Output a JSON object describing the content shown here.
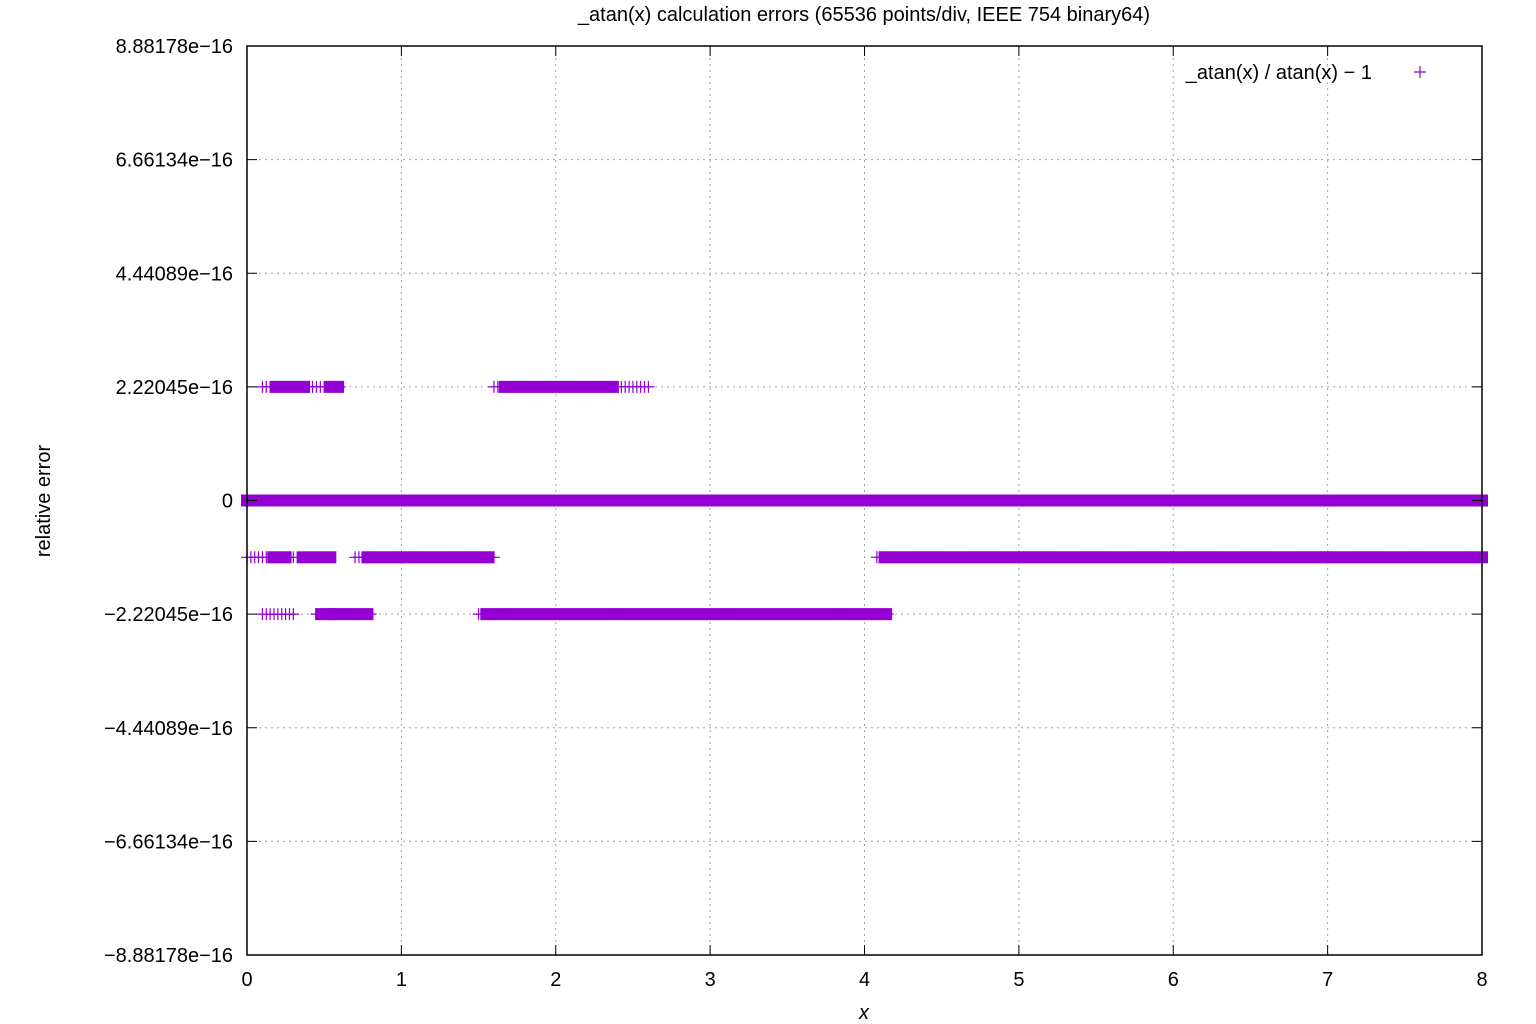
{
  "chart_data": {
    "type": "scatter",
    "title": "_atan(x) calculation errors (65536 points/div, IEEE 754 binary64)",
    "xlabel": "x",
    "ylabel": "relative error",
    "xlim": [
      0,
      8
    ],
    "ylim": [
      -8.88178e-16,
      8.88178e-16
    ],
    "x_ticks": [
      "0",
      "1",
      "2",
      "3",
      "4",
      "5",
      "6",
      "7",
      "8"
    ],
    "y_ticks": [
      {
        "value": 8.88178e-16,
        "label": "8.88178e−16"
      },
      {
        "value": 6.66134e-16,
        "label": "6.66134e−16"
      },
      {
        "value": 4.44089e-16,
        "label": "4.44089e−16"
      },
      {
        "value": 2.22045e-16,
        "label": "2.22045e−16"
      },
      {
        "value": 0,
        "label": "0"
      },
      {
        "value": -2.22045e-16,
        "label": "−2.22045e−16"
      },
      {
        "value": -4.44089e-16,
        "label": "−4.44089e−16"
      },
      {
        "value": -6.66134e-16,
        "label": "−6.66134e−16"
      },
      {
        "value": -8.88178e-16,
        "label": "−8.88178e−16"
      }
    ],
    "grid": true,
    "legend_position": "top-right",
    "series": [
      {
        "name": "_atan(x) / atan(x) − 1",
        "color": "#9400d3",
        "marker": "plus",
        "levels": [
          {
            "y": 2.22045e-16,
            "dense_ranges": [
              [
                0.19,
                0.37
              ],
              [
                0.54,
                0.59
              ],
              [
                1.67,
                2.37
              ]
            ],
            "sparse_ranges": [
              [
                0.1,
                0.6
              ],
              [
                1.6,
                2.6
              ]
            ]
          },
          {
            "y": 0,
            "dense_ranges": [
              [
                0,
                8
              ]
            ],
            "sparse_ranges": []
          },
          {
            "y": -1.11022e-16,
            "dense_ranges": [
              [
                0.17,
                0.25
              ],
              [
                0.36,
                0.54
              ],
              [
                0.78,
                1.56
              ],
              [
                4.13,
                8
              ]
            ],
            "sparse_ranges": [
              [
                0,
                0.3
              ],
              [
                0.7,
                1.6
              ],
              [
                4.08,
                8
              ]
            ]
          },
          {
            "y": -2.22045e-16,
            "dense_ranges": [
              [
                0.48,
                0.53
              ],
              [
                0.55,
                0.78
              ],
              [
                1.55,
                4.14
              ]
            ],
            "sparse_ranges": [
              [
                0.1,
                0.3
              ],
              [
                0.45,
                0.8
              ],
              [
                1.5,
                4.15
              ]
            ]
          }
        ]
      }
    ]
  }
}
